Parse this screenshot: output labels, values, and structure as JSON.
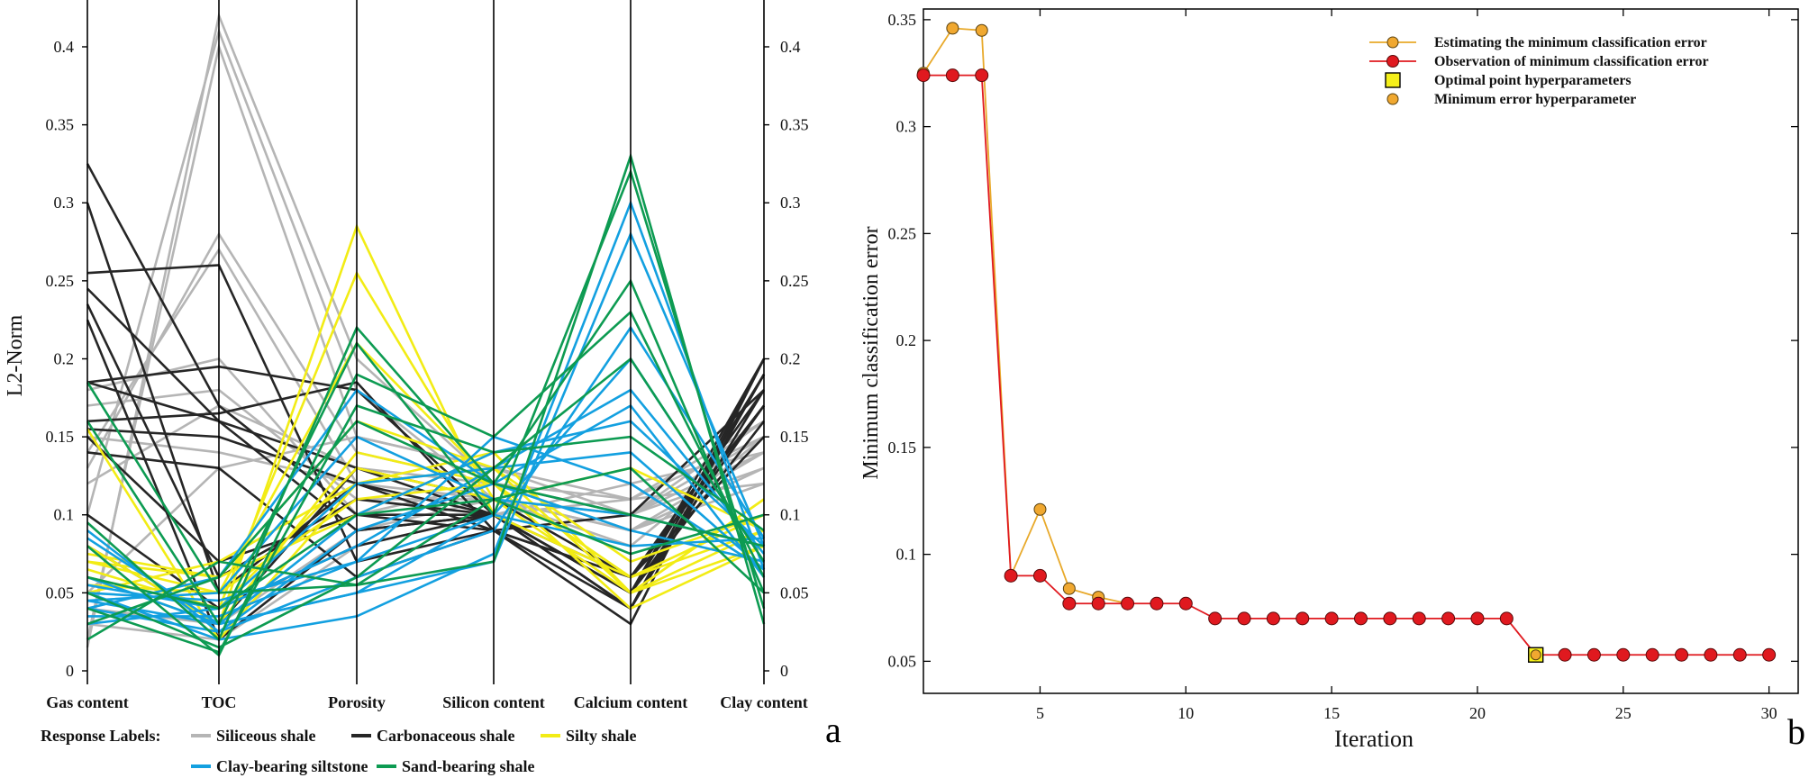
{
  "panels": {
    "left": "a",
    "right": "b"
  },
  "colors": {
    "siliceous": "#b5b5b5",
    "carbonaceous": "#262626",
    "silty": "#f2ec15",
    "clay": "#13a0e0",
    "sand": "#0d9b52",
    "estimate_line": "#e8a92a",
    "estimate_marker": "#f0a830",
    "observation": "#e0191f",
    "optimal": "#f5f01a"
  },
  "chart_data": [
    {
      "type": "line",
      "subtype": "parallel-coordinates",
      "ylabel": "L2-Norm",
      "ylim": [
        0,
        0.43
      ],
      "yticks": [
        0,
        0.05,
        0.1,
        0.15,
        0.2,
        0.25,
        0.3,
        0.35,
        0.4
      ],
      "ytick_labels": [
        "0",
        "0.05",
        "0.1",
        "0.15",
        "0.2",
        "0.25",
        "0.3",
        "0.35",
        "0.4"
      ],
      "categories": [
        "Gas content",
        "TOC",
        "Porosity",
        "Silicon content",
        "Calcium content",
        "Clay content"
      ],
      "legend": {
        "title": "Response Labels:",
        "position": "bottom",
        "entries": [
          "Siliceous shale",
          "Carbonaceous shale",
          "Silty shale",
          "Clay-bearing siltstone",
          "Sand-bearing shale"
        ]
      },
      "series": [
        {
          "name": "Siliceous shale",
          "color_key": "siliceous",
          "lines": [
            [
              0.015,
              0.42,
              0.2,
              0.12,
              0.11,
              0.15
            ],
            [
              0.02,
              0.4,
              0.15,
              0.13,
              0.1,
              0.14
            ],
            [
              0.1,
              0.41,
              0.18,
              0.11,
              0.09,
              0.13
            ],
            [
              0.13,
              0.28,
              0.14,
              0.12,
              0.1,
              0.16
            ],
            [
              0.14,
              0.27,
              0.12,
              0.1,
              0.11,
              0.12
            ],
            [
              0.17,
              0.18,
              0.11,
              0.11,
              0.09,
              0.14
            ],
            [
              0.12,
              0.17,
              0.13,
              0.12,
              0.1,
              0.13
            ],
            [
              0.15,
              0.14,
              0.12,
              0.11,
              0.08,
              0.15
            ],
            [
              0.18,
              0.2,
              0.1,
              0.12,
              0.09,
              0.12
            ],
            [
              0.05,
              0.13,
              0.15,
              0.13,
              0.11,
              0.16
            ],
            [
              0.03,
              0.02,
              0.08,
              0.1,
              0.12,
              0.14
            ],
            [
              0.04,
              0.03,
              0.09,
              0.11,
              0.1,
              0.15
            ]
          ]
        },
        {
          "name": "Carbonaceous shale",
          "color_key": "carbonaceous",
          "lines": [
            [
              0.325,
              0.17,
              0.1,
              0.1,
              0.05,
              0.2
            ],
            [
              0.3,
              0.05,
              0.12,
              0.1,
              0.04,
              0.19
            ],
            [
              0.255,
              0.26,
              0.07,
              0.09,
              0.06,
              0.18
            ],
            [
              0.245,
              0.16,
              0.09,
              0.1,
              0.05,
              0.17
            ],
            [
              0.235,
              0.06,
              0.11,
              0.1,
              0.04,
              0.2
            ],
            [
              0.225,
              0.02,
              0.09,
              0.1,
              0.06,
              0.17
            ],
            [
              0.185,
              0.195,
              0.18,
              0.1,
              0.05,
              0.16
            ],
            [
              0.185,
              0.16,
              0.13,
              0.1,
              0.04,
              0.19
            ],
            [
              0.16,
              0.165,
              0.185,
              0.09,
              0.06,
              0.15
            ],
            [
              0.155,
              0.15,
              0.12,
              0.09,
              0.04,
              0.18
            ],
            [
              0.15,
              0.07,
              0.1,
              0.09,
              0.03,
              0.2
            ],
            [
              0.14,
              0.13,
              0.06,
              0.09,
              0.1,
              0.18
            ],
            [
              0.1,
              0.04,
              0.08,
              0.1,
              0.05,
              0.19
            ],
            [
              0.08,
              0.03,
              0.13,
              0.11,
              0.06,
              0.17
            ]
          ]
        },
        {
          "name": "Silty shale",
          "color_key": "silty",
          "lines": [
            [
              0.06,
              0.03,
              0.285,
              0.1,
              0.06,
              0.1
            ],
            [
              0.065,
              0.04,
              0.255,
              0.11,
              0.05,
              0.09
            ],
            [
              0.07,
              0.05,
              0.21,
              0.12,
              0.04,
              0.08
            ],
            [
              0.075,
              0.06,
              0.16,
              0.13,
              0.05,
              0.11
            ],
            [
              0.08,
              0.03,
              0.14,
              0.12,
              0.06,
              0.09
            ],
            [
              0.155,
              0.02,
              0.12,
              0.13,
              0.07,
              0.1
            ],
            [
              0.05,
              0.07,
              0.12,
              0.14,
              0.05,
              0.08
            ],
            [
              0.06,
              0.04,
              0.13,
              0.11,
              0.13,
              0.09
            ],
            [
              0.055,
              0.05,
              0.11,
              0.12,
              0.06,
              0.1
            ],
            [
              0.07,
              0.06,
              0.1,
              0.14,
              0.05,
              0.11
            ]
          ]
        },
        {
          "name": "Clay-bearing siltstone",
          "color_key": "clay",
          "lines": [
            [
              0.05,
              0.02,
              0.035,
              0.075,
              0.3,
              0.065
            ],
            [
              0.045,
              0.03,
              0.05,
              0.07,
              0.28,
              0.08
            ],
            [
              0.04,
              0.025,
              0.06,
              0.09,
              0.22,
              0.085
            ],
            [
              0.035,
              0.035,
              0.07,
              0.1,
              0.2,
              0.07
            ],
            [
              0.03,
              0.04,
              0.08,
              0.13,
              0.18,
              0.075
            ],
            [
              0.09,
              0.025,
              0.09,
              0.12,
              0.17,
              0.06
            ],
            [
              0.085,
              0.03,
              0.1,
              0.14,
              0.16,
              0.08
            ],
            [
              0.055,
              0.04,
              0.12,
              0.13,
              0.14,
              0.065
            ],
            [
              0.045,
              0.05,
              0.15,
              0.11,
              0.1,
              0.08
            ],
            [
              0.04,
              0.06,
              0.18,
              0.12,
              0.09,
              0.07
            ],
            [
              0.05,
              0.045,
              0.07,
              0.15,
              0.12,
              0.065
            ],
            [
              0.06,
              0.03,
              0.05,
              0.1,
              0.08,
              0.085
            ]
          ]
        },
        {
          "name": "Sand-bearing shale",
          "color_key": "sand",
          "lines": [
            [
              0.185,
              0.05,
              0.055,
              0.07,
              0.33,
              0.03
            ],
            [
              0.16,
              0.03,
              0.21,
              0.1,
              0.32,
              0.04
            ],
            [
              0.095,
              0.02,
              0.22,
              0.12,
              0.25,
              0.05
            ],
            [
              0.08,
              0.01,
              0.19,
              0.15,
              0.23,
              0.06
            ],
            [
              0.05,
              0.015,
              0.06,
              0.13,
              0.2,
              0.07
            ],
            [
              0.04,
              0.012,
              0.17,
              0.14,
              0.15,
              0.09
            ],
            [
              0.03,
              0.06,
              0.16,
              0.12,
              0.1,
              0.08
            ],
            [
              0.02,
              0.07,
              0.055,
              0.11,
              0.075,
              0.1
            ],
            [
              0.06,
              0.04,
              0.1,
              0.11,
              0.13,
              0.05
            ]
          ]
        }
      ]
    },
    {
      "type": "line",
      "xlabel": "Iteration",
      "ylabel": "Minimum classification error",
      "xlim": [
        1,
        31
      ],
      "ylim": [
        0.035,
        0.355
      ],
      "xticks": [
        5,
        10,
        15,
        20,
        25,
        30
      ],
      "xtick_labels": [
        "5",
        "10",
        "15",
        "20",
        "25",
        "30"
      ],
      "yticks": [
        0.05,
        0.1,
        0.15,
        0.2,
        0.25,
        0.3,
        0.35
      ],
      "ytick_labels": [
        "0.05",
        "0.1",
        "0.15",
        "0.2",
        "0.25",
        "0.3",
        "0.35"
      ],
      "legend": {
        "position": "top-right",
        "entries": [
          "Estimating the minimum classification error",
          "Observation of minimum classification error",
          "Optimal point hyperparameters",
          "Minimum error hyperparameter"
        ]
      },
      "series": [
        {
          "name": "Estimating the minimum classification error",
          "color_key": "estimate_line",
          "x": [
            1,
            2,
            3,
            4,
            5,
            6,
            7,
            8
          ],
          "y": [
            0.325,
            0.346,
            0.345,
            0.09,
            0.121,
            0.084,
            0.08,
            0.077
          ]
        },
        {
          "name": "Observation of minimum classification error",
          "color_key": "observation",
          "x": [
            1,
            2,
            3,
            4,
            5,
            6,
            7,
            8,
            9,
            10,
            11,
            12,
            13,
            14,
            15,
            16,
            17,
            18,
            19,
            20,
            21,
            22,
            23,
            24,
            25,
            26,
            27,
            28,
            29,
            30
          ],
          "y": [
            0.324,
            0.324,
            0.324,
            0.09,
            0.09,
            0.077,
            0.077,
            0.077,
            0.077,
            0.077,
            0.07,
            0.07,
            0.07,
            0.07,
            0.07,
            0.07,
            0.07,
            0.07,
            0.07,
            0.07,
            0.07,
            0.053,
            0.053,
            0.053,
            0.053,
            0.053,
            0.053,
            0.053,
            0.053,
            0.053
          ]
        },
        {
          "name": "Optimal point hyperparameters",
          "color_key": "optimal",
          "x": [
            22
          ],
          "y": [
            0.053
          ]
        },
        {
          "name": "Minimum error hyperparameter",
          "color_key": "estimate_marker",
          "x": [
            22
          ],
          "y": [
            0.053
          ]
        }
      ]
    }
  ]
}
